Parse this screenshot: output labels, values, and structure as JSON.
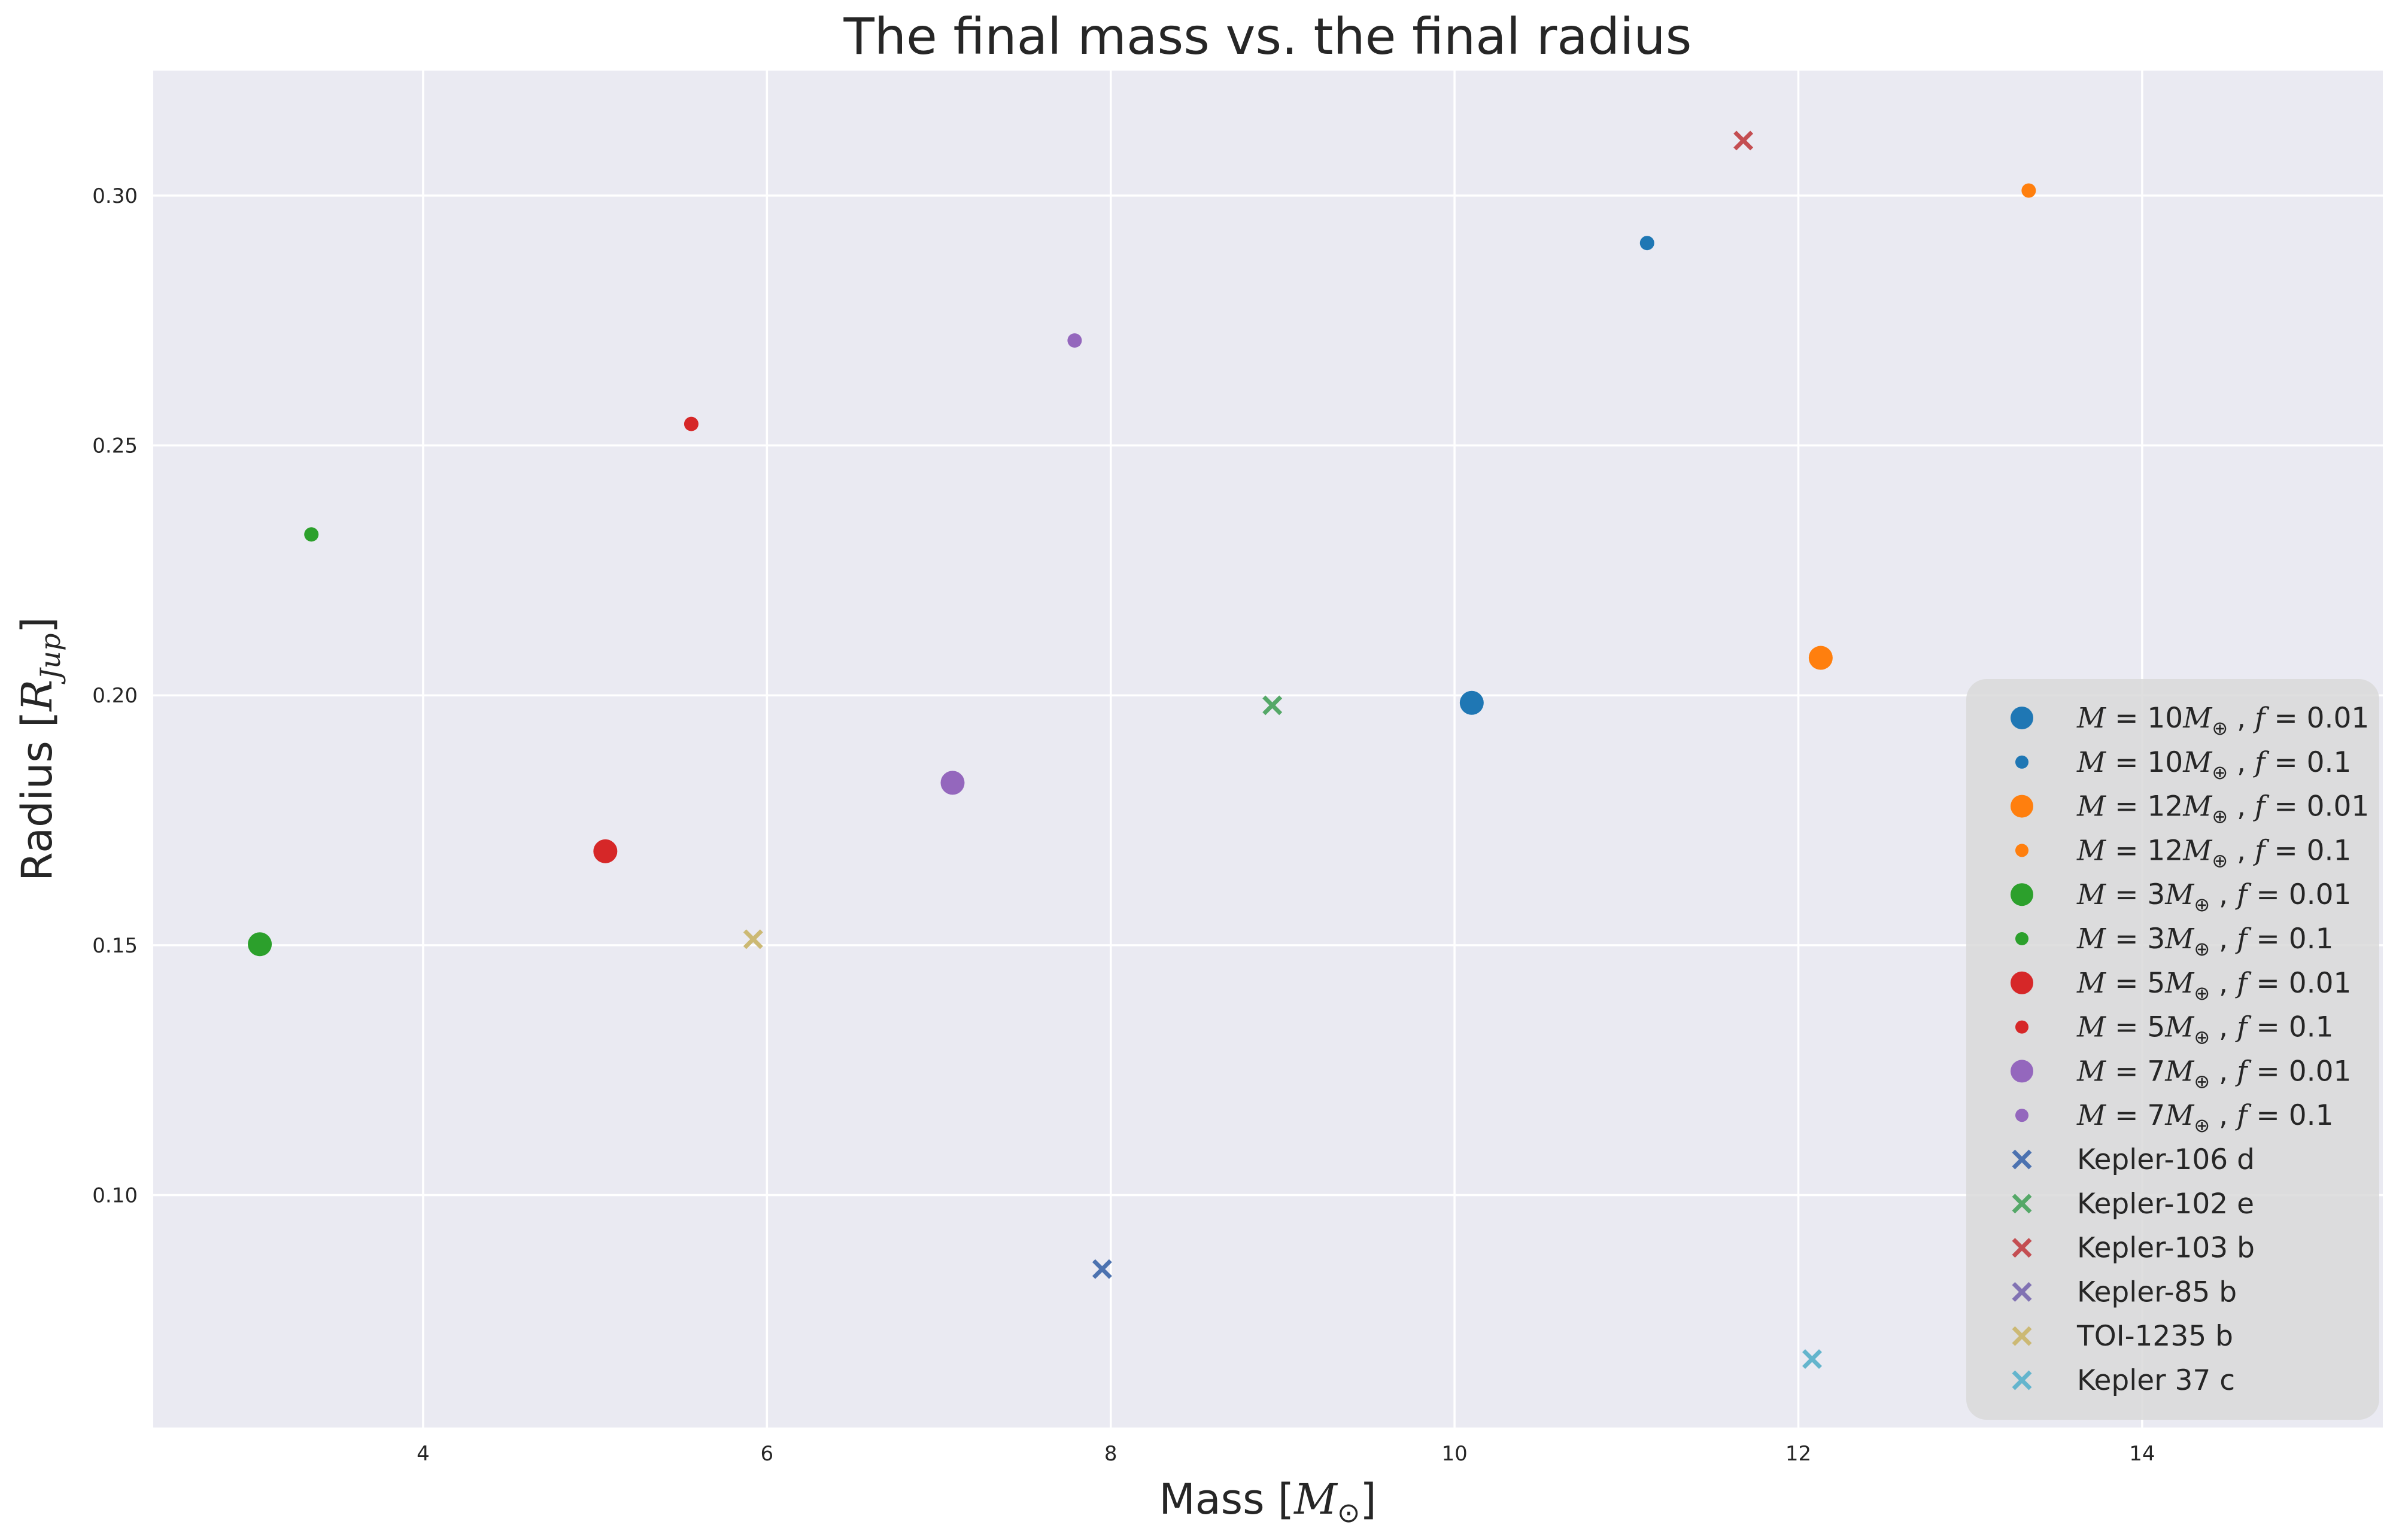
{
  "chart_data": {
    "type": "scatter",
    "title": "The final mass vs. the final radius",
    "xlabel": {
      "prefix": "Mass [",
      "symbol": "M",
      "sub": "⊙",
      "suffix": "]"
    },
    "ylabel": {
      "prefix": "Radius [",
      "symbol": "R",
      "sub": "Jup",
      "suffix": "]"
    },
    "xlim": [
      2.43,
      15.4
    ],
    "ylim": [
      0.0535,
      0.325
    ],
    "xticks": [
      4,
      6,
      8,
      10,
      12,
      14
    ],
    "yticks": [
      0.1,
      0.15,
      0.2,
      0.25,
      0.3
    ],
    "xtick_labels": [
      "4",
      "6",
      "8",
      "10",
      "12",
      "14"
    ],
    "ytick_labels": [
      "0.10",
      "0.15",
      "0.20",
      "0.25",
      "0.30"
    ],
    "grid": true,
    "legend_position": "lower-right",
    "colors": {
      "background": "#eaeaf2",
      "grid": "#ffffff",
      "legend_bg": "#d9d9d9"
    },
    "series": [
      {
        "name": {
          "M": "10",
          "f": "0.01"
        },
        "marker": "circle-large",
        "color": "#1f77b4",
        "points": [
          [
            10.1,
            0.1985
          ]
        ]
      },
      {
        "name": {
          "M": "10",
          "f": "0.1"
        },
        "marker": "circle-small",
        "color": "#1f77b4",
        "points": [
          [
            11.12,
            0.2905
          ]
        ]
      },
      {
        "name": {
          "M": "12",
          "f": "0.01"
        },
        "marker": "circle-large",
        "color": "#ff7f0e",
        "points": [
          [
            12.13,
            0.2075
          ]
        ]
      },
      {
        "name": {
          "M": "12",
          "f": "0.1"
        },
        "marker": "circle-small",
        "color": "#ff7f0e",
        "points": [
          [
            13.34,
            0.301
          ]
        ]
      },
      {
        "name": {
          "M": "3",
          "f": "0.01"
        },
        "marker": "circle-large",
        "color": "#2ca02c",
        "points": [
          [
            3.05,
            0.1502
          ]
        ]
      },
      {
        "name": {
          "M": "3",
          "f": "0.1"
        },
        "marker": "circle-small",
        "color": "#2ca02c",
        "points": [
          [
            3.35,
            0.2322
          ]
        ]
      },
      {
        "name": {
          "M": "5",
          "f": "0.01"
        },
        "marker": "circle-large",
        "color": "#d62728",
        "points": [
          [
            5.06,
            0.1688
          ]
        ]
      },
      {
        "name": {
          "M": "5",
          "f": "0.1"
        },
        "marker": "circle-small",
        "color": "#d62728",
        "points": [
          [
            5.56,
            0.2543
          ]
        ]
      },
      {
        "name": {
          "M": "7",
          "f": "0.01"
        },
        "marker": "circle-large",
        "color": "#9467bd",
        "points": [
          [
            7.08,
            0.1825
          ]
        ]
      },
      {
        "name": {
          "M": "7",
          "f": "0.1"
        },
        "marker": "circle-small",
        "color": "#9467bd",
        "points": [
          [
            7.79,
            0.271
          ]
        ]
      },
      {
        "name": "Kepler-106 d",
        "marker": "x",
        "color": "#4c72b0",
        "points": [
          [
            7.95,
            0.0852
          ]
        ]
      },
      {
        "name": "Kepler-102 e",
        "marker": "x",
        "color": "#55a868",
        "points": [
          [
            8.94,
            0.198
          ]
        ]
      },
      {
        "name": "Kepler-103 b",
        "marker": "x",
        "color": "#c44e52",
        "points": [
          [
            11.68,
            0.311
          ]
        ]
      },
      {
        "name": "Kepler-85 b",
        "marker": "x",
        "color": "#8172b3",
        "points": []
      },
      {
        "name": "TOI-1235 b",
        "marker": "x",
        "color": "#ccb974",
        "points": [
          [
            5.92,
            0.1512
          ]
        ]
      },
      {
        "name": "Kepler 37 c",
        "marker": "x",
        "color": "#64b5cd",
        "points": [
          [
            12.08,
            0.0672
          ]
        ]
      }
    ]
  }
}
